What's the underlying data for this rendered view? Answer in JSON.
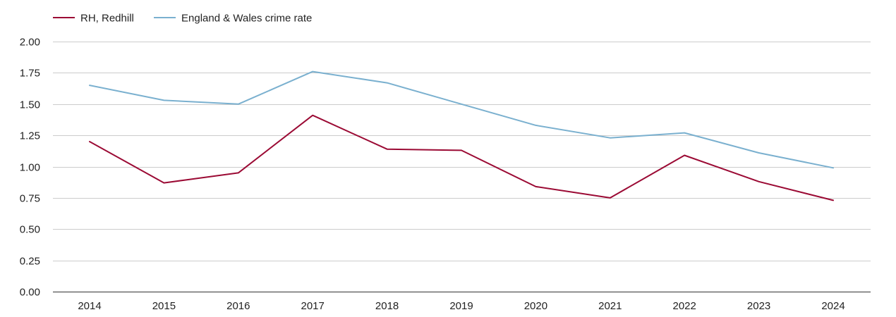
{
  "chart_data": {
    "type": "line",
    "title": "",
    "xlabel": "",
    "ylabel": "",
    "x": [
      "2014",
      "2015",
      "2016",
      "2017",
      "2018",
      "2019",
      "2020",
      "2021",
      "2022",
      "2023",
      "2024"
    ],
    "ylim": [
      0,
      2
    ],
    "y_ticks": [
      "0.00",
      "0.25",
      "0.50",
      "0.75",
      "1.00",
      "1.25",
      "1.50",
      "1.75",
      "2.00"
    ],
    "grid": true,
    "legend_position": "top-left",
    "series": [
      {
        "name": "RH, Redhill",
        "color": "#9b0a34",
        "values": [
          1.2,
          0.87,
          0.95,
          1.41,
          1.14,
          1.13,
          0.84,
          0.75,
          1.09,
          0.88,
          0.73
        ]
      },
      {
        "name": "England & Wales crime rate",
        "color": "#7ab0cf",
        "values": [
          1.65,
          1.53,
          1.5,
          1.76,
          1.67,
          1.5,
          1.33,
          1.23,
          1.27,
          1.11,
          0.99
        ]
      }
    ]
  }
}
